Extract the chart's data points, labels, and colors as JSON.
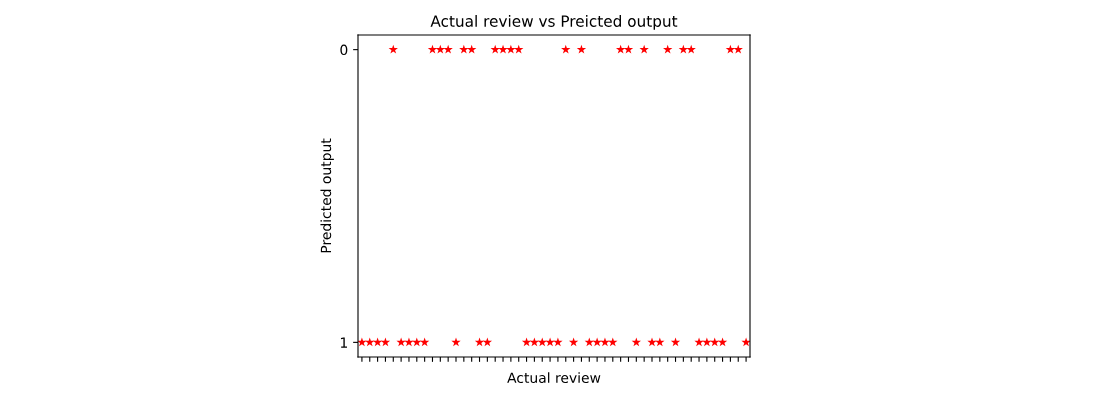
{
  "chart_data": {
    "type": "scatter",
    "title": "Actual review vs Preicted output",
    "xlabel": "Actual review",
    "ylabel": "Predicted output",
    "categories": [
      null,
      null,
      null,
      null,
      null,
      null,
      null,
      null,
      null,
      null,
      null,
      null,
      null,
      null,
      null,
      null,
      null,
      null,
      null,
      null,
      null,
      null,
      null,
      null,
      null,
      null,
      null,
      null,
      null,
      null,
      null,
      null,
      null,
      null,
      null,
      null,
      null,
      null,
      null,
      null,
      null,
      null,
      null,
      null,
      null,
      null,
      null,
      null,
      null,
      null
    ],
    "series": [
      {
        "color": "#ff0000",
        "values": [
          1,
          1,
          1,
          1,
          0,
          1,
          1,
          1,
          1,
          0,
          0,
          0,
          1,
          0,
          0,
          1,
          1,
          0,
          0,
          0,
          0,
          1,
          1,
          1,
          1,
          1,
          0,
          1,
          0,
          1,
          1,
          1,
          1,
          0,
          0,
          1,
          0,
          1,
          1,
          0,
          1,
          0,
          0,
          1,
          1,
          1,
          1,
          0,
          0,
          1
        ]
      }
    ],
    "ylim": [
      1.05,
      -0.05
    ],
    "yticks": [
      0,
      1
    ],
    "marker": "star",
    "grid": false,
    "legend": false
  }
}
